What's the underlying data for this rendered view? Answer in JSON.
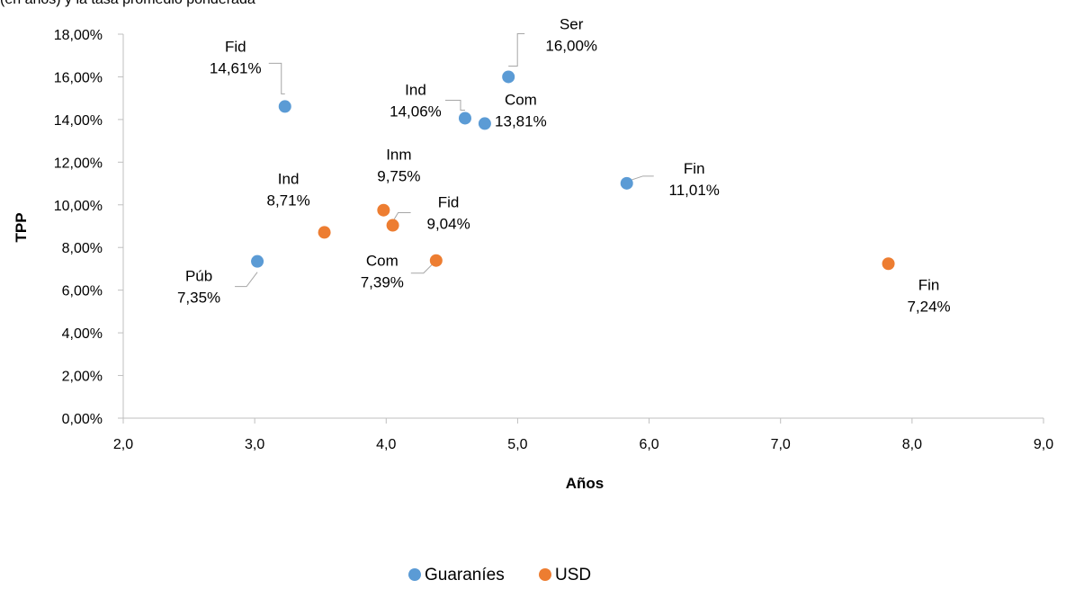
{
  "header": {
    "clipped_text": "(en años) y la tasa promedio ponderada"
  },
  "chart_data": {
    "type": "scatter",
    "title": "",
    "xlabel": "Años",
    "ylabel": "TPP",
    "xlim": [
      2.0,
      9.0
    ],
    "ylim": [
      0,
      18
    ],
    "x_ticks": [
      "2,0",
      "3,0",
      "4,0",
      "5,0",
      "6,0",
      "7,0",
      "8,0",
      "9,0"
    ],
    "y_ticks": [
      "0,00%",
      "2,00%",
      "4,00%",
      "6,00%",
      "8,00%",
      "10,00%",
      "12,00%",
      "14,00%",
      "16,00%",
      "18,00%"
    ],
    "grid": false,
    "legend_position": "bottom",
    "series": [
      {
        "name": "Guaraníes",
        "color": "#5B9BD5",
        "points": [
          {
            "x": 3.23,
            "y": 14.61,
            "label": "Fid",
            "value_label": "14,61%"
          },
          {
            "x": 4.6,
            "y": 14.06,
            "label": "Ind",
            "value_label": "14,06%"
          },
          {
            "x": 4.75,
            "y": 13.81,
            "label": "Com",
            "value_label": "13,81%"
          },
          {
            "x": 4.93,
            "y": 16.0,
            "label": "Ser",
            "value_label": "16,00%"
          },
          {
            "x": 5.83,
            "y": 11.01,
            "label": "Fin",
            "value_label": "11,01%"
          },
          {
            "x": 3.02,
            "y": 7.35,
            "label": "Púb",
            "value_label": "7,35%"
          }
        ]
      },
      {
        "name": "USD",
        "color": "#ED7D31",
        "points": [
          {
            "x": 3.53,
            "y": 8.71,
            "label": "Ind",
            "value_label": "8,71%"
          },
          {
            "x": 3.98,
            "y": 9.75,
            "label": "Inm",
            "value_label": "9,75%"
          },
          {
            "x": 4.05,
            "y": 9.04,
            "label": "Fid",
            "value_label": "9,04%"
          },
          {
            "x": 4.38,
            "y": 7.39,
            "label": "Com",
            "value_label": "7,39%"
          },
          {
            "x": 7.82,
            "y": 7.24,
            "label": "Fin",
            "value_label": "7,24%"
          }
        ]
      }
    ]
  }
}
